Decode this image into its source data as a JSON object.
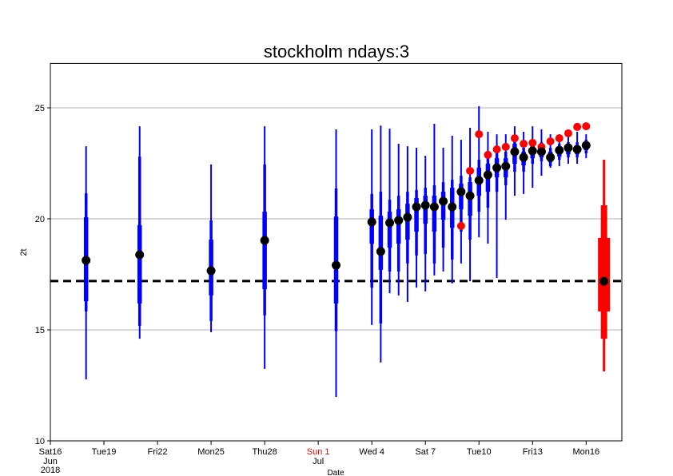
{
  "chart_data": {
    "type": "boxplot",
    "title": "stockholm ndays:3",
    "ylabel": "2t",
    "xlabel": "Date",
    "xlim": [
      "2018-06-16T00:00",
      "2018-07-18T00:00"
    ],
    "ylim": [
      10,
      27
    ],
    "yticks": [
      10,
      15,
      20,
      25
    ],
    "grid": true,
    "xticks": [
      {
        "value": "2018-06-16T00:00",
        "label": "Sat16"
      },
      {
        "value": "2018-06-19T00:00",
        "label": "Tue19"
      },
      {
        "value": "2018-06-22T00:00",
        "label": "Fri22"
      },
      {
        "value": "2018-06-25T00:00",
        "label": "Mon25"
      },
      {
        "value": "2018-06-28T00:00",
        "label": "Thu28"
      },
      {
        "value": "2018-07-01T00:00",
        "label": "Sun 1",
        "color": "#ff0000"
      },
      {
        "value": "2018-07-04T00:00",
        "label": "Wed 4"
      },
      {
        "value": "2018-07-07T00:00",
        "label": "Sat 7"
      },
      {
        "value": "2018-07-10T00:00",
        "label": "Tue10"
      },
      {
        "value": "2018-07-13T00:00",
        "label": "Fri13"
      },
      {
        "value": "2018-07-16T00:00",
        "label": "Mon16"
      }
    ],
    "x_sublabels": [
      {
        "value": "2018-06-16T00:00",
        "lines": [
          "Jun",
          "2018"
        ]
      },
      {
        "value": "2018-07-01T00:00",
        "lines": [
          "Jul"
        ]
      }
    ],
    "reference_line": {
      "value": 17.2,
      "color": "#000000"
    },
    "boxes": {
      "color": "#0000ff",
      "median_color": "#000000",
      "x": [
        "2018-06-18T00:00",
        "2018-06-21T00:00",
        "2018-06-25T00:00",
        "2018-06-28T00:00",
        "2018-07-02T00:00",
        "2018-07-04T00:00",
        "2018-07-04T12:00",
        "2018-07-05T00:00",
        "2018-07-05T12:00",
        "2018-07-06T00:00",
        "2018-07-06T12:00",
        "2018-07-07T00:00",
        "2018-07-07T12:00",
        "2018-07-08T00:00",
        "2018-07-08T12:00",
        "2018-07-09T00:00",
        "2018-07-09T12:00",
        "2018-07-10T00:00",
        "2018-07-10T12:00",
        "2018-07-11T00:00",
        "2018-07-11T12:00",
        "2018-07-12T00:00",
        "2018-07-12T12:00",
        "2018-07-13T00:00",
        "2018-07-13T12:00",
        "2018-07-14T00:00",
        "2018-07-14T12:00",
        "2018-07-15T00:00",
        "2018-07-15T12:00",
        "2018-07-16T00:00"
      ],
      "min": [
        12.77,
        14.6,
        14.89,
        13.24,
        11.98,
        15.22,
        13.53,
        16.65,
        16.55,
        16.26,
        16.9,
        16.73,
        17.45,
        17.63,
        17.09,
        17.99,
        17.19,
        19.17,
        18.88,
        17.34,
        19.96,
        21.04,
        21.12,
        21.4,
        21.94,
        22.3,
        22.37,
        22.48,
        22.48,
        22.73
      ],
      "p10": [
        15.83,
        15.18,
        15.4,
        15.65,
        14.93,
        16.9,
        15.29,
        17.63,
        17.63,
        17.99,
        18.35,
        18.42,
        17.99,
        18.7,
        18.17,
        19.42,
        19.06,
        20.32,
        20.5,
        21.22,
        21.51,
        22.12,
        22.12,
        22.48,
        22.59,
        22.37,
        22.66,
        22.77,
        22.77,
        22.95
      ],
      "p25": [
        16.29,
        16.19,
        16.55,
        16.83,
        16.19,
        18.88,
        17.7,
        18.7,
        18.88,
        19.06,
        19.42,
        19.78,
        19.42,
        19.96,
        19.6,
        20.43,
        20.14,
        21.04,
        21.22,
        21.87,
        21.87,
        22.48,
        22.41,
        22.73,
        22.77,
        22.55,
        22.81,
        22.91,
        22.91,
        23.09
      ],
      "p75": [
        20.07,
        19.71,
        19.06,
        20.32,
        20.1,
        20.43,
        20.14,
        20.32,
        20.43,
        20.68,
        20.94,
        21.04,
        21.04,
        21.22,
        21.4,
        21.58,
        21.65,
        22.3,
        22.48,
        22.73,
        22.73,
        23.38,
        23.02,
        23.38,
        23.27,
        23.02,
        23.2,
        23.31,
        23.31,
        23.45
      ],
      "p90": [
        21.15,
        22.8,
        19.93,
        22.45,
        21.37,
        21.12,
        21.22,
        20.86,
        21.04,
        21.22,
        21.3,
        21.4,
        21.51,
        21.65,
        21.76,
        21.94,
        21.87,
        22.66,
        22.84,
        23.02,
        23.02,
        23.56,
        23.2,
        23.56,
        23.45,
        23.2,
        23.38,
        23.45,
        23.45,
        23.56
      ],
      "max": [
        23.27,
        24.17,
        22.45,
        24.17,
        24.03,
        24.03,
        24.2,
        24.06,
        23.38,
        23.27,
        23.2,
        22.84,
        24.28,
        23.2,
        23.74,
        23.56,
        24.1,
        25.07,
        23.92,
        23.81,
        23.81,
        24.17,
        23.92,
        24.17,
        24.03,
        23.81,
        23.81,
        23.81,
        23.92,
        23.81
      ],
      "median": [
        18.13,
        18.38,
        17.66,
        19.03,
        17.91,
        19.86,
        18.53,
        19.82,
        19.93,
        20.07,
        20.54,
        20.61,
        20.54,
        20.79,
        20.54,
        21.22,
        21.04,
        21.73,
        21.98,
        22.3,
        22.37,
        23.02,
        22.77,
        23.06,
        23.02,
        22.77,
        23.09,
        23.2,
        23.13,
        23.31
      ]
    },
    "points": {
      "color": "#ff0000",
      "values": [
        null,
        null,
        null,
        null,
        null,
        null,
        null,
        null,
        null,
        null,
        null,
        null,
        null,
        null,
        null,
        19.68,
        22.16,
        23.81,
        22.88,
        23.13,
        23.24,
        23.63,
        23.38,
        23.42,
        23.24,
        23.49,
        23.63,
        23.85,
        24.14,
        24.17
      ]
    },
    "climate_box": {
      "color": "#ff0000",
      "median_color": "#000000",
      "x": "2018-07-17T00:00",
      "min": 13.13,
      "p10": 14.6,
      "p25": 15.83,
      "p75": 19.14,
      "p90": 20.61,
      "max": 22.66,
      "median": 17.19
    }
  }
}
